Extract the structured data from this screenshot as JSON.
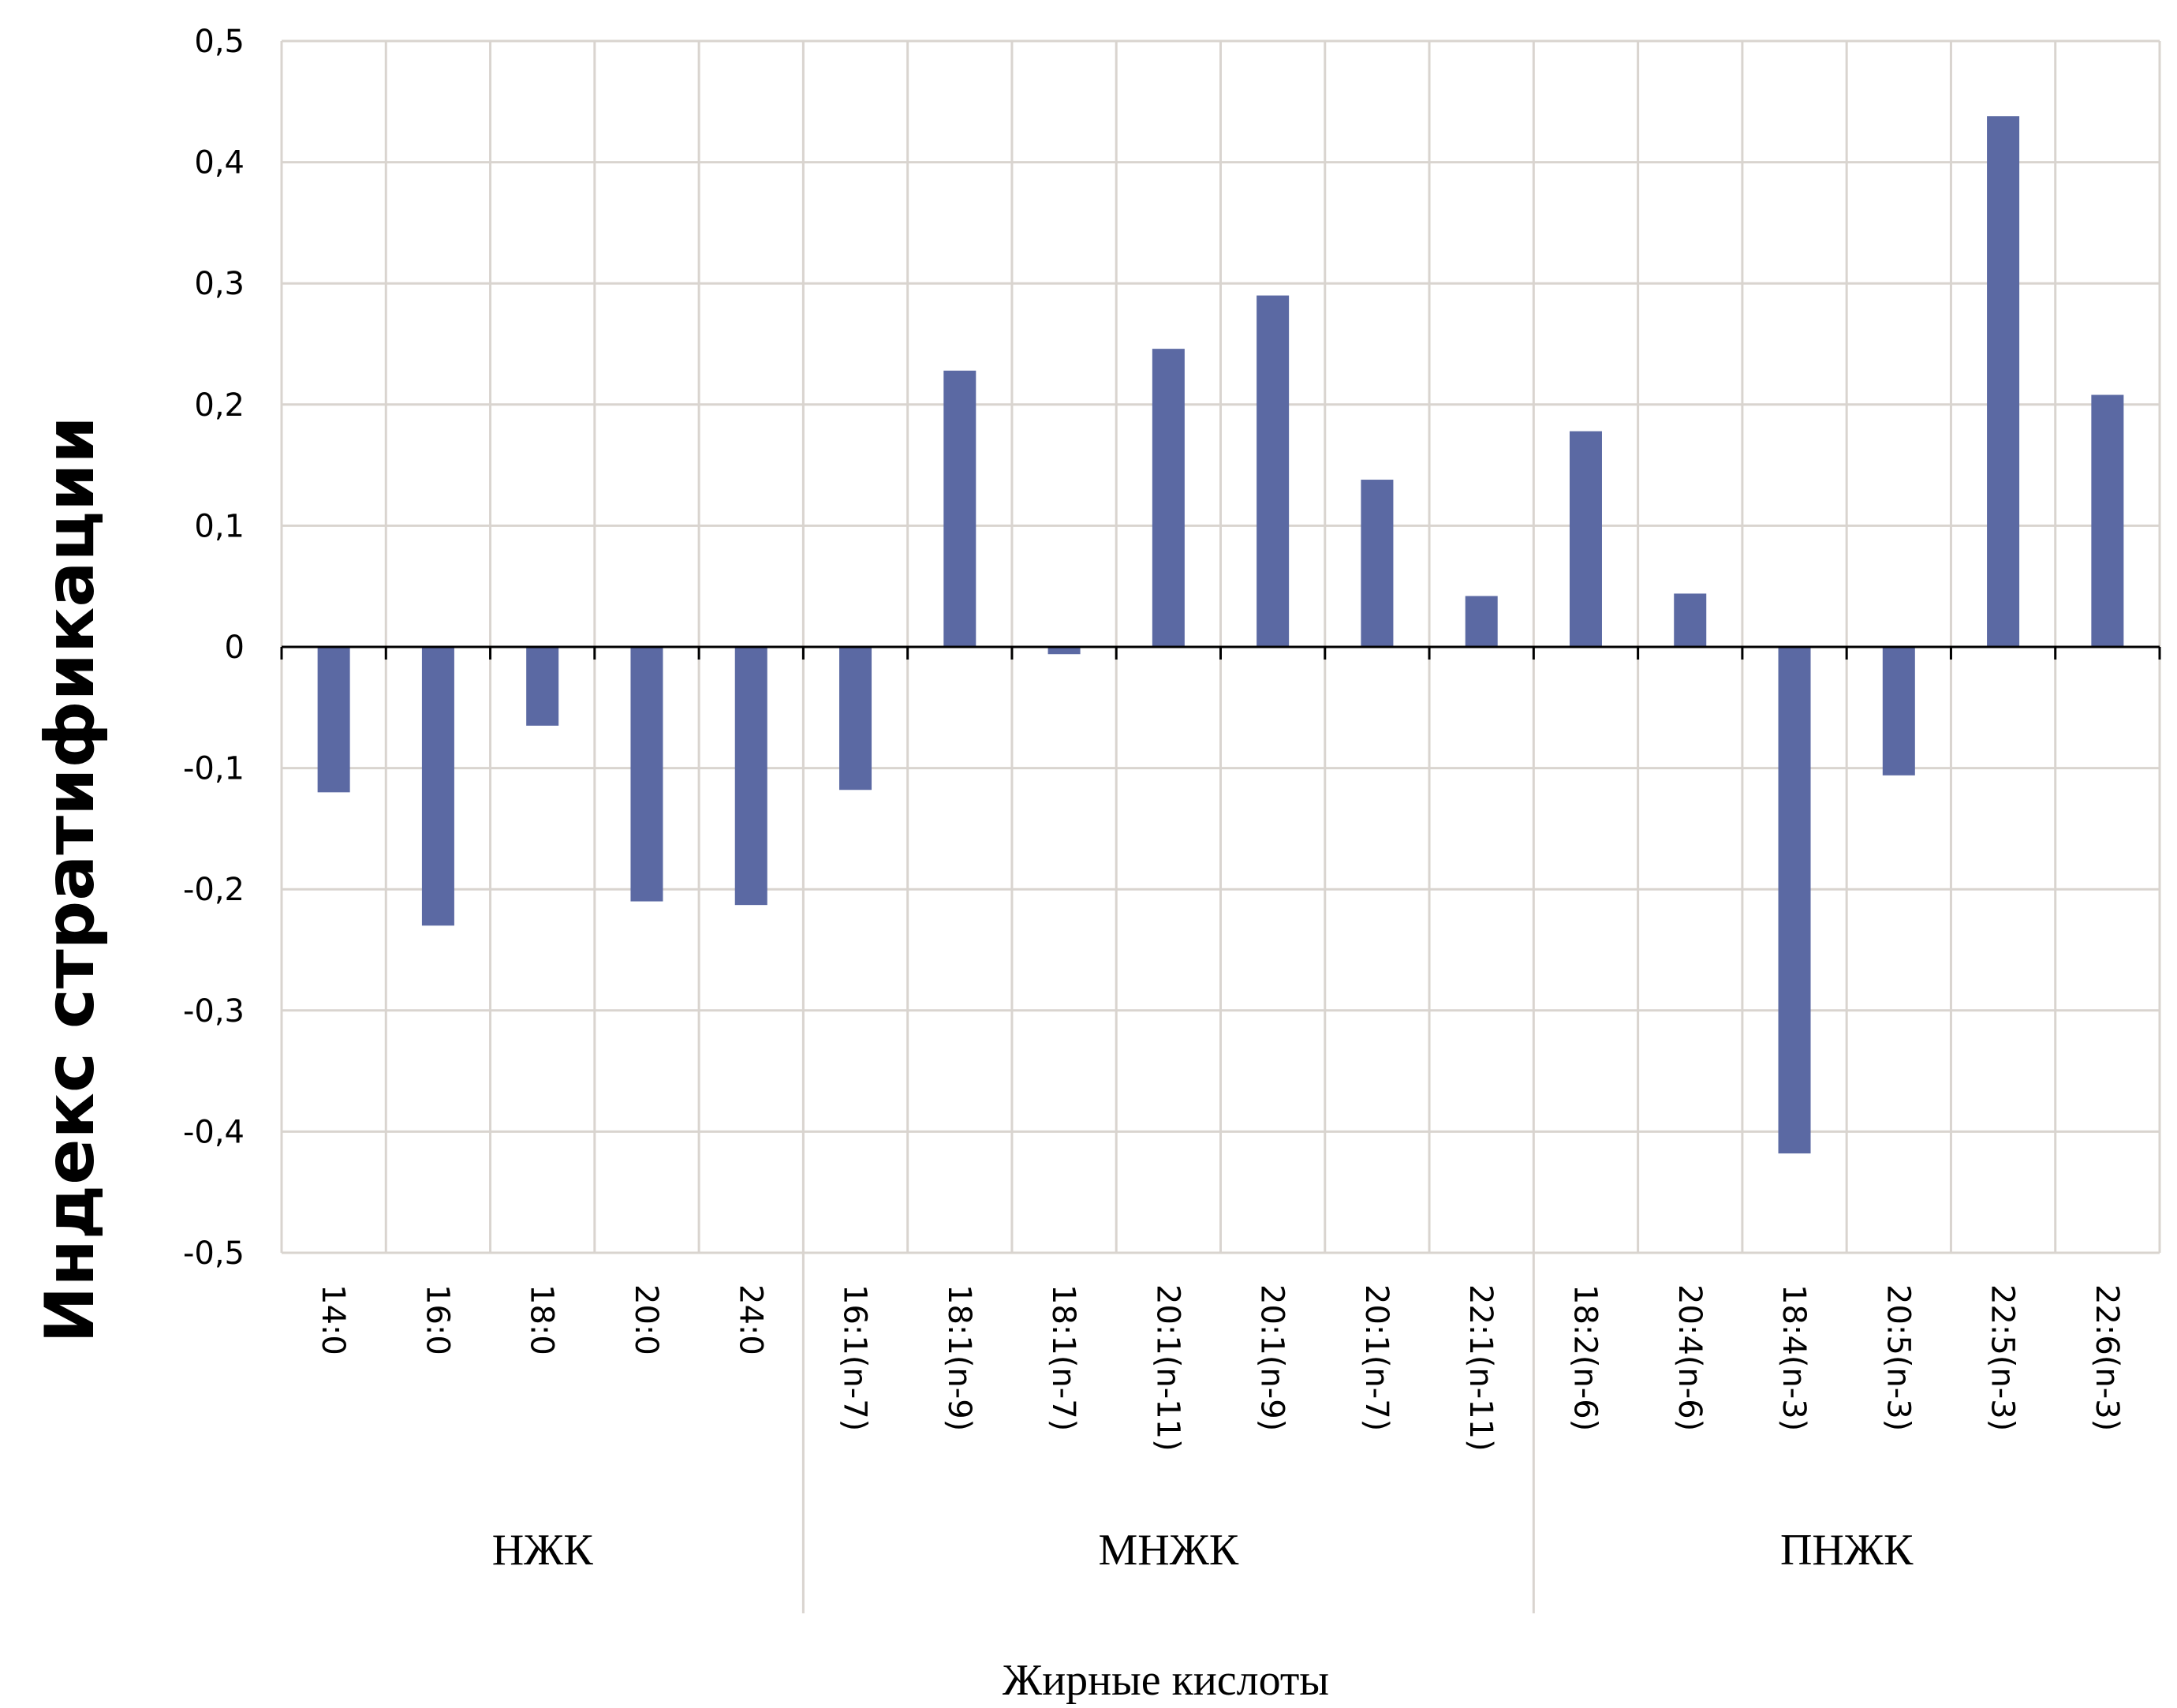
{
  "chart_data": {
    "type": "bar",
    "xlabel": "Жирные кислоты",
    "ylabel": "Индекс стратификации",
    "ylim": [
      -0.5,
      0.5
    ],
    "ytick_values": [
      0.5,
      0.4,
      0.3,
      0.2,
      0.1,
      0,
      -0.1,
      -0.2,
      -0.3,
      -0.4,
      -0.5
    ],
    "yticks": [
      "0,5",
      "0,4",
      "0,3",
      "0,2",
      "0,1",
      "0",
      "-0,1",
      "-0,2",
      "-0,3",
      "-0,4",
      "-0,5"
    ],
    "grid": true,
    "bar_color": "#5b69a3",
    "categories": [
      "14:0",
      "16:0",
      "18:0",
      "20:0",
      "24:0",
      "16:1(n-7)",
      "18:1(n-9)",
      "18:1(n-7)",
      "20:1(n-11)",
      "20:1(n-9)",
      "20:1(n-7)",
      "22:1(n-11)",
      "18:2(n-6)",
      "20:4(n-6)",
      "18:4(n-3)",
      "20:5(n-3)",
      "22:5(n-3)",
      "22:6(n-3)"
    ],
    "values": [
      -0.12,
      -0.23,
      -0.065,
      -0.21,
      -0.213,
      -0.118,
      0.228,
      -0.006,
      0.246,
      0.29,
      0.138,
      0.042,
      0.178,
      0.044,
      -0.418,
      -0.106,
      0.438,
      0.208
    ],
    "groups": [
      {
        "label": "НЖК",
        "start": 0,
        "count": 5
      },
      {
        "label": "МНЖК",
        "start": 5,
        "count": 7
      },
      {
        "label": "ПНЖК",
        "start": 12,
        "count": 6
      }
    ]
  }
}
